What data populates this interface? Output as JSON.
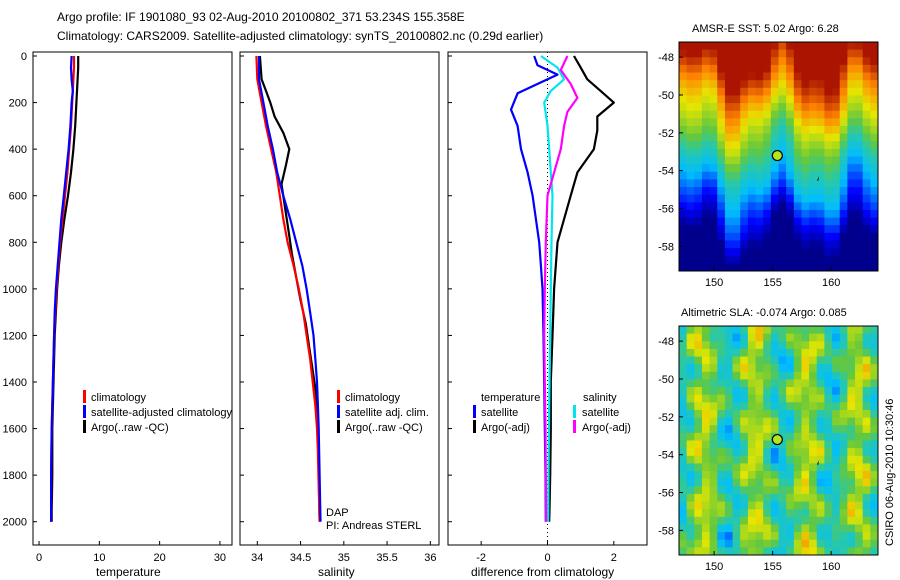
{
  "header": {
    "title": "Argo profile: IF 1901080_93 02-Aug-2010 20100802_371 53.234S 155.358E",
    "subtitle": "Climatology: CARS2009. Satellite-adjusted climatology: synTS_20100802.nc (0.29d earlier)"
  },
  "side_label": "CSIRO 06-Aug-2010 10:30:46",
  "colors": {
    "climatology": "#ff0000",
    "satellite": "#0000ff",
    "argo": "#000000",
    "cyan": "#00e5ee",
    "magenta": "#ff00ff",
    "marker": "#b5e61d"
  },
  "chart_data": [
    {
      "type": "line",
      "panel": "temperature",
      "xlabel": "temperature",
      "xlim": [
        -1,
        32
      ],
      "xticks": [
        "0",
        "10",
        "20",
        "30"
      ],
      "ylim": [
        0,
        2100
      ],
      "yticks": [
        "0",
        "200",
        "400",
        "600",
        "800",
        "1000",
        "1200",
        "1400",
        "1600",
        "1800",
        "2000"
      ],
      "legend": [
        "climatology",
        "satellite-adjusted climatology",
        "Argo(..raw -QC)"
      ],
      "series": [
        {
          "name": "Argo(..raw -QC)",
          "color": "#000000",
          "x": [
            6.5,
            6.5,
            6.4,
            6.3,
            6.2,
            6.0,
            5.7,
            5.3,
            4.8,
            4.2,
            3.7,
            3.3,
            3.0,
            2.8,
            2.6,
            2.5,
            2.4,
            2.3,
            2.2,
            2.2,
            2.1,
            2.1
          ],
          "y": [
            0,
            50,
            100,
            150,
            200,
            300,
            400,
            500,
            600,
            700,
            800,
            900,
            1000,
            1100,
            1200,
            1300,
            1400,
            1500,
            1600,
            1800,
            1950,
            2000
          ]
        },
        {
          "name": "climatology",
          "color": "#ff0000",
          "x": [
            5.8,
            5.8,
            5.7,
            5.6,
            5.5,
            5.3,
            5.0,
            4.7,
            4.3,
            3.9,
            3.5,
            3.2,
            2.9,
            2.7,
            2.5,
            2.4,
            2.3,
            2.2,
            2.1,
            2.0,
            2.0
          ],
          "y": [
            0,
            50,
            100,
            150,
            200,
            300,
            400,
            500,
            600,
            700,
            800,
            900,
            1000,
            1100,
            1200,
            1300,
            1400,
            1500,
            1600,
            1800,
            2000
          ]
        },
        {
          "name": "satellite-adjusted climatology",
          "color": "#0000ff",
          "x": [
            5.4,
            5.3,
            5.4,
            5.6,
            5.4,
            5.2,
            4.9,
            4.5,
            4.1,
            3.7,
            3.4,
            3.1,
            2.8,
            2.6,
            2.5,
            2.4,
            2.3,
            2.2,
            2.1,
            2.0,
            2.0
          ],
          "y": [
            0,
            50,
            100,
            150,
            200,
            300,
            400,
            500,
            600,
            700,
            800,
            900,
            1000,
            1100,
            1200,
            1300,
            1400,
            1500,
            1600,
            1800,
            2000
          ]
        }
      ]
    },
    {
      "type": "line",
      "panel": "salinity",
      "xlabel": "salinity",
      "xlim": [
        33.8,
        36.1
      ],
      "xticks": [
        "34",
        "34.5",
        "35",
        "35.5",
        "36"
      ],
      "ylim": [
        0,
        2100
      ],
      "legend": [
        "climatology",
        "satellite adj. clim.",
        "Argo(..raw -QC)"
      ],
      "annotations": [
        "DAP",
        "PI: Andreas STERL"
      ],
      "series": [
        {
          "name": "Argo(..raw -QC)",
          "color": "#000000",
          "x": [
            34.03,
            34.05,
            34.1,
            34.15,
            34.2,
            34.3,
            34.37,
            34.33,
            34.28,
            34.32,
            34.36,
            34.4,
            34.45,
            34.5,
            34.56,
            34.6,
            34.64,
            34.68,
            34.7,
            34.71,
            34.72
          ],
          "y": [
            0,
            100,
            150,
            200,
            260,
            330,
            400,
            470,
            550,
            650,
            750,
            850,
            950,
            1050,
            1150,
            1250,
            1350,
            1450,
            1550,
            1750,
            2000
          ]
        },
        {
          "name": "climatology",
          "color": "#ff0000",
          "x": [
            33.99,
            34.0,
            34.05,
            34.1,
            34.16,
            34.22,
            34.26,
            34.3,
            34.35,
            34.42,
            34.48,
            34.53,
            34.57,
            34.61,
            34.64,
            34.67,
            34.69,
            34.7,
            34.71,
            34.72
          ],
          "y": [
            0,
            100,
            200,
            300,
            400,
            500,
            600,
            700,
            800,
            900,
            1000,
            1100,
            1200,
            1300,
            1400,
            1500,
            1600,
            1700,
            1850,
            2000
          ]
        },
        {
          "name": "satellite adj. clim.",
          "color": "#0000ff",
          "x": [
            34.02,
            34.02,
            34.07,
            34.12,
            34.18,
            34.23,
            34.3,
            34.38,
            34.45,
            34.52,
            34.57,
            34.61,
            34.65,
            34.67,
            34.69,
            34.7,
            34.71,
            34.72,
            34.73
          ],
          "y": [
            0,
            100,
            200,
            300,
            400,
            500,
            600,
            700,
            800,
            900,
            1000,
            1100,
            1200,
            1300,
            1400,
            1500,
            1600,
            1800,
            2000
          ]
        }
      ]
    },
    {
      "type": "line",
      "panel": "difference",
      "xlabel": "difference from climatology",
      "xlim": [
        -3,
        3
      ],
      "xticks": [
        "-2",
        "0",
        "2"
      ],
      "ylim": [
        0,
        2100
      ],
      "legend_left_title": "temperature",
      "legend_right_title": "salinity",
      "legend": [
        "satellite",
        "Argo(-adj)",
        "satellite",
        "Argo(-adj)"
      ],
      "series": [
        {
          "name": "temperature Argo(-adj)",
          "color": "#000000",
          "x": [
            0.8,
            1.0,
            1.2,
            1.6,
            2.0,
            1.5,
            1.5,
            1.4,
            0.9,
            0.7,
            0.5,
            0.3,
            0.25,
            0.2,
            0.15,
            0.1,
            0.1,
            0.08,
            0.06,
            0.05
          ],
          "y": [
            0,
            50,
            100,
            150,
            200,
            260,
            320,
            400,
            500,
            600,
            700,
            800,
            900,
            1000,
            1200,
            1400,
            1600,
            1800,
            1950,
            2000
          ]
        },
        {
          "name": "temperature satellite",
          "color": "#0000ff",
          "x": [
            -0.4,
            -0.3,
            0.3,
            -0.9,
            -1.1,
            -0.9,
            -0.8,
            -0.6,
            -0.45,
            -0.35,
            -0.25,
            -0.2,
            -0.15,
            -0.12,
            -0.1,
            -0.08,
            -0.06,
            -0.05
          ],
          "y": [
            0,
            40,
            80,
            160,
            230,
            300,
            400,
            500,
            600,
            700,
            800,
            900,
            1000,
            1200,
            1400,
            1600,
            1800,
            2000
          ]
        },
        {
          "name": "salinity satellite",
          "color": "#00e5ee",
          "x": [
            -0.2,
            0.3,
            0.5,
            0.1,
            -0.1,
            0.0,
            0.05,
            0.1,
            0.15,
            0.12,
            0.1,
            0.08,
            0.05,
            0.03,
            0.02
          ],
          "y": [
            0,
            50,
            100,
            150,
            200,
            300,
            400,
            500,
            600,
            800,
            1000,
            1200,
            1500,
            1800,
            2000
          ]
        },
        {
          "name": "salinity Argo(-adj)",
          "color": "#ff00ff",
          "x": [
            0.6,
            0.4,
            0.7,
            0.9,
            0.6,
            0.5,
            0.4,
            0.2,
            0.0,
            -0.05,
            -0.08,
            -0.1,
            -0.08,
            -0.06,
            -0.05,
            -0.04
          ],
          "y": [
            0,
            60,
            120,
            180,
            240,
            300,
            400,
            500,
            600,
            800,
            1000,
            1200,
            1400,
            1600,
            1800,
            2000
          ]
        }
      ]
    },
    {
      "type": "heatmap",
      "panel": "sst-map",
      "title": "AMSR-E SST: 5.02 Argo: 6.28",
      "xlim": [
        147,
        164
      ],
      "ylim": [
        -59.3,
        -47.2
      ],
      "xticks": [
        "150",
        "155",
        "160"
      ],
      "yticks": [
        "-48",
        "-50",
        "-52",
        "-54",
        "-56",
        "-58"
      ],
      "marker": {
        "lon": 155.4,
        "lat": -53.2
      }
    },
    {
      "type": "heatmap",
      "panel": "sla-map",
      "title": "Altimetric SLA: -0.074 Argo: 0.085",
      "xlim": [
        147,
        164
      ],
      "ylim": [
        -59.3,
        -47.2
      ],
      "xticks": [
        "150",
        "155",
        "160"
      ],
      "yticks": [
        "-48",
        "-50",
        "-52",
        "-54",
        "-56",
        "-58"
      ],
      "marker": {
        "lon": 155.4,
        "lat": -53.2
      }
    }
  ]
}
